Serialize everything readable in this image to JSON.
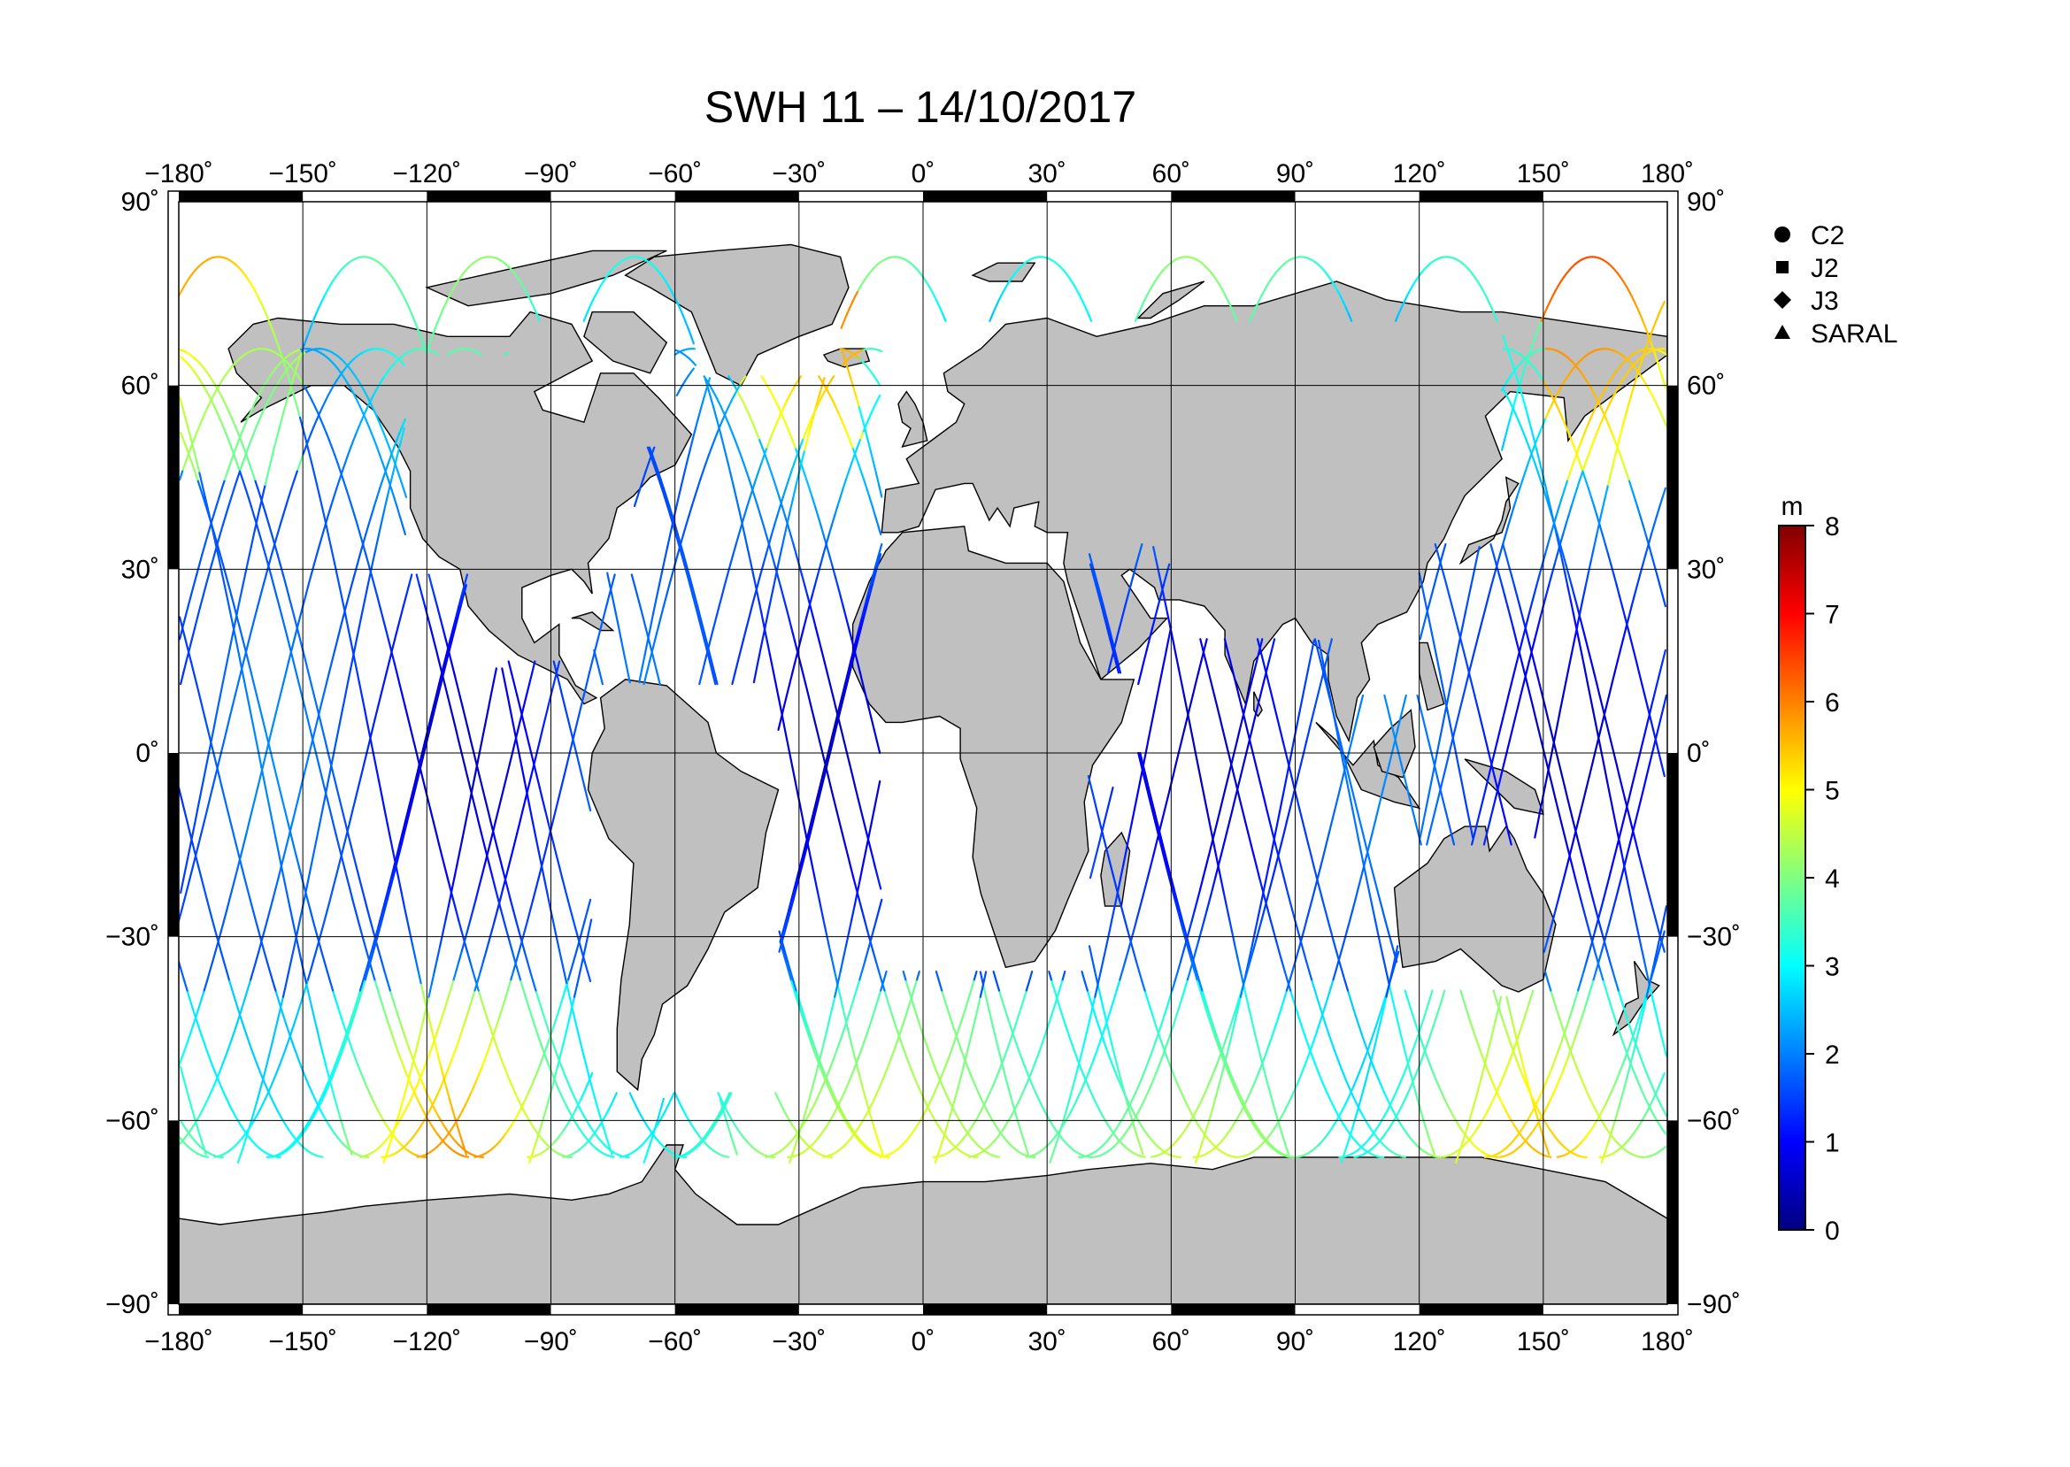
{
  "title": "SWH 11 – 14/10/2017",
  "chart_data": {
    "type": "map",
    "projection": "equirectangular",
    "xlim": [
      -180,
      180
    ],
    "ylim": [
      -90,
      90
    ],
    "x_ticks": [
      "−180˚",
      "−150˚",
      "−120˚",
      "−90˚",
      "−60˚",
      "−30˚",
      "0˚",
      "30˚",
      "60˚",
      "90˚",
      "120˚",
      "150˚",
      "180˚"
    ],
    "x_tick_values": [
      -180,
      -150,
      -120,
      -90,
      -60,
      -30,
      0,
      30,
      60,
      90,
      120,
      150,
      180
    ],
    "y_ticks": [
      "90˚",
      "60˚",
      "30˚",
      "0˚",
      "−30˚",
      "−60˚",
      "−90˚"
    ],
    "y_tick_values": [
      90,
      60,
      30,
      0,
      -30,
      -60,
      -90
    ],
    "grid": true,
    "legend": {
      "placement": "right",
      "entries": [
        {
          "name": "C2",
          "marker": "circle"
        },
        {
          "name": "J2",
          "marker": "square"
        },
        {
          "name": "J3",
          "marker": "diamond"
        },
        {
          "name": "SARAL",
          "marker": "triangle"
        }
      ]
    },
    "colorbar": {
      "unit": "m",
      "range": [
        0,
        8
      ],
      "ticks": [
        "8",
        "7",
        "6",
        "5",
        "4",
        "3",
        "2",
        "1",
        "0"
      ],
      "colors": [
        "#000080",
        "#0000ff",
        "#0080ff",
        "#00ffff",
        "#80ff80",
        "#ffff00",
        "#ff8000",
        "#ff0000",
        "#800000"
      ]
    },
    "colors": {
      "land": "#c0c0c0",
      "coast": "#000000",
      "ocean": "#ffffff"
    }
  }
}
